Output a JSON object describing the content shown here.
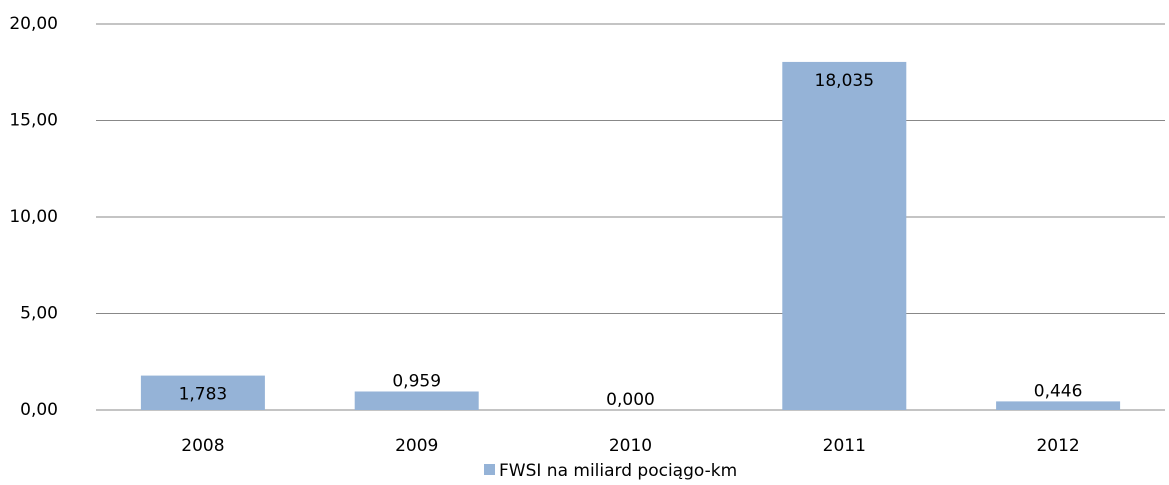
{
  "chart_data": {
    "type": "bar",
    "categories": [
      "2008",
      "2009",
      "2010",
      "2011",
      "2012"
    ],
    "series": [
      {
        "name": "FWSI na miliard pociągo-km",
        "color": "#95b3d7",
        "values": [
          1.783,
          0.959,
          0,
          18.035,
          0.446
        ],
        "value_labels": [
          "1,783",
          "0,959",
          "0,000",
          "18,035",
          "0,446"
        ]
      }
    ],
    "ylim": [
      0,
      20
    ],
    "yticks": [
      {
        "value": 0,
        "label": "0,00"
      },
      {
        "value": 5,
        "label": "5,00"
      },
      {
        "value": 10,
        "label": "10,00"
      },
      {
        "value": 15,
        "label": "15,00"
      },
      {
        "value": 20,
        "label": "20,00"
      }
    ],
    "grid": true,
    "legend": "bottom"
  }
}
